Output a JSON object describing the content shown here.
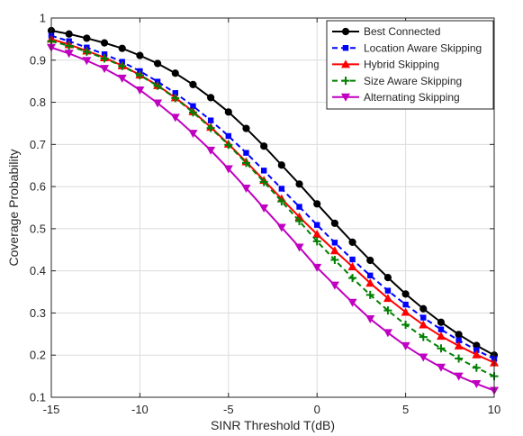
{
  "chart_data": {
    "type": "line",
    "xlabel": "SINR Threshold T(dB)",
    "ylabel": "Coverage Probability",
    "xlim": [
      -15,
      10
    ],
    "ylim": [
      0.1,
      1
    ],
    "xticks": [
      -15,
      -10,
      -5,
      0,
      5,
      10
    ],
    "yticks": [
      0.1,
      0.2,
      0.3,
      0.4,
      0.5,
      0.6,
      0.7,
      0.8,
      0.9,
      1
    ],
    "xtick_labels": [
      "-15",
      "-10",
      "-5",
      "0",
      "5",
      "10"
    ],
    "ytick_labels": [
      "0.1",
      "0.2",
      "0.3",
      "0.4",
      "0.5",
      "0.6",
      "0.7",
      "0.8",
      "0.9",
      "1"
    ],
    "grid": true,
    "legend_position": "top-right",
    "x": [
      -15,
      -14,
      -13,
      -12,
      -11,
      -10,
      -9,
      -8,
      -7,
      -6,
      -5,
      -4,
      -3,
      -2,
      -1,
      0,
      1,
      2,
      3,
      4,
      5,
      6,
      7,
      8,
      9,
      10
    ],
    "series": [
      {
        "name": "Best Connected",
        "color": "#000000",
        "line": "solid",
        "marker": "circle",
        "values": [
          0.97,
          0.962,
          0.952,
          0.941,
          0.928,
          0.911,
          0.892,
          0.869,
          0.842,
          0.811,
          0.777,
          0.738,
          0.696,
          0.651,
          0.606,
          0.559,
          0.513,
          0.468,
          0.425,
          0.384,
          0.345,
          0.31,
          0.278,
          0.249,
          0.223,
          0.2
        ]
      },
      {
        "name": "Location Aware Skipping",
        "color": "#0000ff",
        "line": "dashed",
        "marker": "square",
        "values": [
          0.958,
          0.945,
          0.93,
          0.914,
          0.896,
          0.874,
          0.849,
          0.822,
          0.791,
          0.757,
          0.72,
          0.68,
          0.638,
          0.595,
          0.552,
          0.509,
          0.467,
          0.427,
          0.389,
          0.353,
          0.32,
          0.289,
          0.261,
          0.235,
          0.212,
          0.191
        ]
      },
      {
        "name": "Hybrid Skipping",
        "color": "#ff0000",
        "line": "solid",
        "marker": "triangle-up",
        "values": [
          0.95,
          0.937,
          0.922,
          0.906,
          0.887,
          0.865,
          0.84,
          0.811,
          0.778,
          0.741,
          0.701,
          0.659,
          0.615,
          0.571,
          0.528,
          0.487,
          0.448,
          0.41,
          0.371,
          0.335,
          0.302,
          0.272,
          0.245,
          0.222,
          0.201,
          0.182
        ]
      },
      {
        "name": "Size Aware Skipping",
        "color": "#008000",
        "line": "dashed",
        "marker": "plus",
        "values": [
          0.945,
          0.934,
          0.92,
          0.904,
          0.886,
          0.864,
          0.839,
          0.81,
          0.776,
          0.739,
          0.699,
          0.656,
          0.611,
          0.565,
          0.518,
          0.47,
          0.426,
          0.383,
          0.343,
          0.306,
          0.272,
          0.243,
          0.216,
          0.192,
          0.17,
          0.15
        ]
      },
      {
        "name": "Alternating Skipping",
        "color": "#c000c0",
        "line": "solid",
        "marker": "triangle-down",
        "values": [
          0.93,
          0.916,
          0.899,
          0.88,
          0.857,
          0.829,
          0.798,
          0.764,
          0.726,
          0.686,
          0.642,
          0.596,
          0.549,
          0.503,
          0.456,
          0.408,
          0.366,
          0.325,
          0.286,
          0.253,
          0.222,
          0.195,
          0.171,
          0.15,
          0.132,
          0.116
        ]
      }
    ]
  }
}
